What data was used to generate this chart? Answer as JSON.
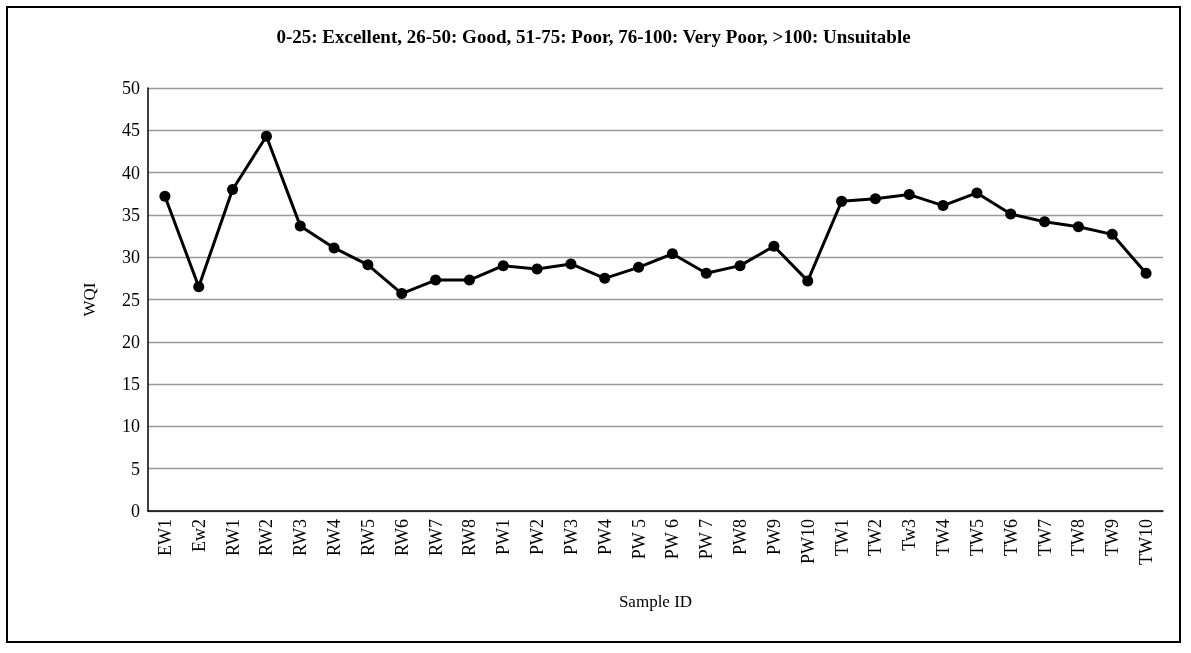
{
  "chart_data": {
    "type": "line",
    "title": "0-25: Excellent, 26-50: Good, 51-75: Poor, 76-100: Very Poor, >100: Unsuitable",
    "xlabel": "Sample ID",
    "ylabel": "WQI",
    "categories": [
      "EW1",
      "Ew2",
      "RW1",
      "RW2",
      "RW3",
      "RW4",
      "RW5",
      "RW6",
      "RW7",
      "RW8",
      "PW1",
      "PW2",
      "PW3",
      "PW4",
      "PW 5",
      "PW 6",
      "PW 7",
      "PW8",
      "PW9",
      "PW10",
      "TW1",
      "TW2",
      "Tw3",
      "TW4",
      "TW5",
      "TW6",
      "TW7",
      "TW8",
      "TW9",
      "TW10"
    ],
    "series": [
      {
        "color": "#000000",
        "values": [
          37.2,
          26.5,
          38.0,
          44.3,
          33.7,
          31.1,
          29.1,
          25.7,
          27.3,
          27.3,
          29.0,
          28.6,
          29.2,
          27.5,
          28.8,
          30.4,
          28.1,
          29.0,
          31.3,
          27.2,
          36.6,
          36.9,
          37.4,
          36.1,
          37.6,
          35.1,
          34.2,
          33.6,
          32.7,
          28.1
        ]
      }
    ],
    "ylim": [
      0,
      50
    ],
    "yticks": [
      0,
      5,
      10,
      15,
      20,
      25,
      30,
      35,
      40,
      45,
      50
    ],
    "grid": "y",
    "marker": "circle",
    "line_style": "solid"
  }
}
